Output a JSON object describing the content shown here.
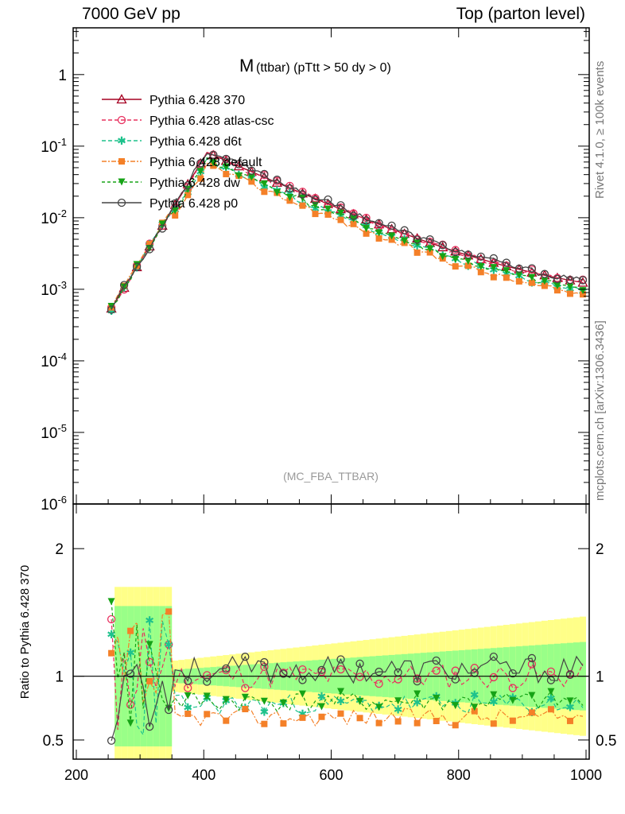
{
  "header": {
    "left": "7000 GeV pp",
    "right": "Top (parton level)"
  },
  "side": {
    "rivet": "Rivet 4.1.0, ≥ 100k events",
    "mcplots": "mcplots.cern.ch [arXiv:1306.3436]"
  },
  "chart_data": {
    "type": "line",
    "title_main": "M",
    "title_sub": "(ttbar) (pTtt > 50 dy > 0)",
    "watermark": "(MC_FBA_TTBAR)",
    "xlabel": "",
    "ylabel_ratio": "Ratio to Pythia 6.428 370",
    "xlim": [
      195,
      1005
    ],
    "ylim_main": [
      1e-06,
      4.5
    ],
    "ylim_ratio": [
      0.35,
      2.35
    ],
    "x_ticks": [
      "200",
      "400",
      "600",
      "800",
      "1000"
    ],
    "y_ticks_main": [
      "1",
      "10^-1",
      "10^-2",
      "10^-3",
      "10^-4",
      "10^-5",
      "10^-6"
    ],
    "y_ticks_ratio": [
      "0.5",
      "1",
      "2"
    ],
    "peak": {
      "mass": 405,
      "value": 0.08
    },
    "series": [
      {
        "name": "Pythia 6.428 370",
        "color": "#a50021",
        "marker": "triangle-open",
        "dash": "",
        "scale": 1.0,
        "ratio_ref": true
      },
      {
        "name": "Pythia 6.428 atlas-csc",
        "color": "#e8305f",
        "marker": "circle-open",
        "dash": "5,3",
        "scale": 1.0,
        "seed": 11
      },
      {
        "name": "Pythia 6.428 d6t",
        "color": "#1ec28c",
        "marker": "star",
        "dash": "5,3",
        "scale": 0.78,
        "seed": 23
      },
      {
        "name": "Pythia 6.428 default",
        "color": "#f48028",
        "marker": "square",
        "dash": "6,2,2,2",
        "scale": 0.68,
        "seed": 37
      },
      {
        "name": "Pythia 6.428 dw",
        "color": "#16a316",
        "marker": "triangle-down",
        "dash": "4,3",
        "scale": 0.8,
        "seed": 41
      },
      {
        "name": "Pythia 6.428 p0",
        "color": "#444444",
        "marker": "circle-open",
        "dash": "",
        "scale": 1.05,
        "seed": 53
      }
    ]
  }
}
